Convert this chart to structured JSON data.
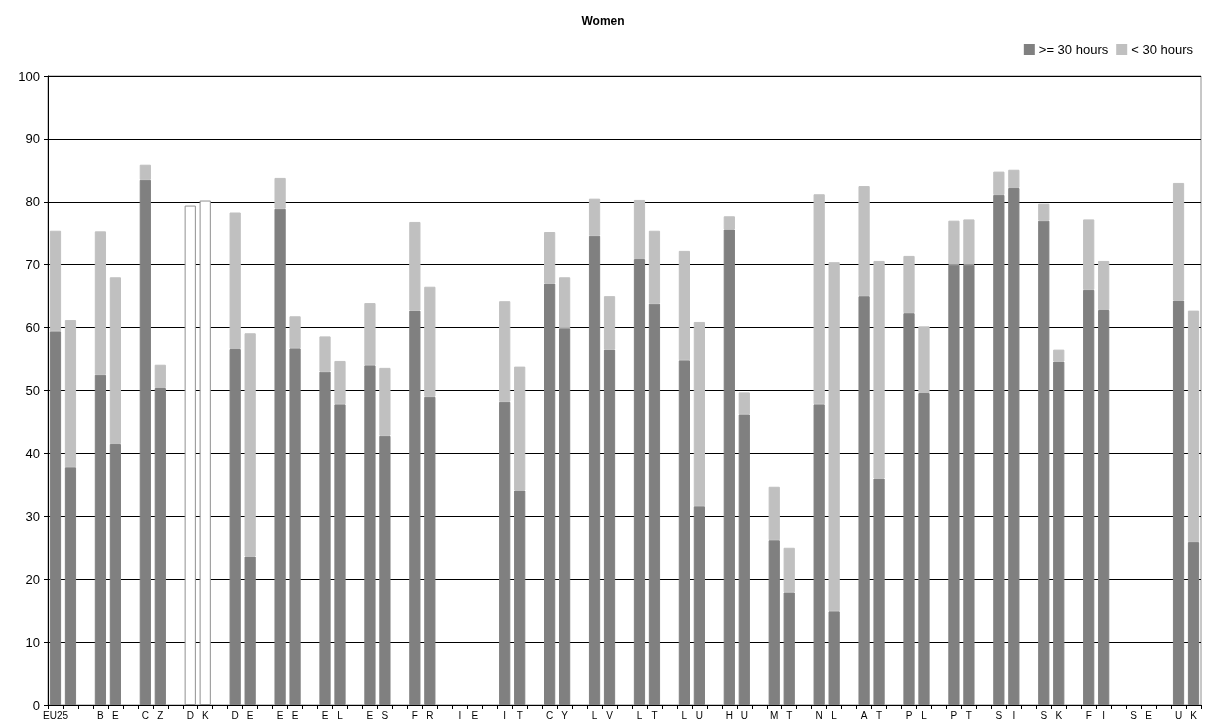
{
  "chart_data": {
    "type": "bar",
    "title": "Women",
    "stacked": true,
    "categories": [
      "EU25",
      null,
      null,
      "B",
      "E",
      null,
      "C",
      "Z",
      null,
      "D",
      "K",
      null,
      "D",
      "E",
      null,
      "E",
      "E",
      null,
      "E",
      "L",
      null,
      "E",
      "S",
      null,
      "F",
      "R",
      null,
      "I",
      "E",
      null,
      "I",
      "T",
      null,
      "C",
      "Y",
      null,
      "L",
      "V",
      null,
      "L",
      "T",
      null,
      "L",
      "U",
      null,
      "H",
      "U",
      null,
      "M",
      "T",
      null,
      "N",
      "L",
      null,
      "A",
      "T",
      null,
      "P",
      "L",
      null,
      "P",
      "T",
      null,
      "S",
      "I",
      null,
      "S",
      "K",
      null,
      "F",
      "I",
      null,
      "S",
      "E",
      null,
      "U",
      "K"
    ],
    "series": [
      {
        "name": ">= 30 hours",
        "color": "#808080",
        "values": [
          59.4,
          37.8,
          null,
          52.5,
          41.5,
          null,
          83.5,
          50.4,
          null,
          null,
          null,
          null,
          56.6,
          23.6,
          null,
          78.9,
          56.7,
          null,
          53.0,
          47.8,
          null,
          54.0,
          42.8,
          null,
          62.7,
          49.0,
          null,
          null,
          null,
          null,
          48.2,
          34.1,
          null,
          67.0,
          59.9,
          null,
          74.6,
          56.5,
          null,
          70.9,
          63.8,
          null,
          54.8,
          31.6,
          null,
          75.6,
          46.2,
          null,
          26.2,
          17.9,
          null,
          47.8,
          14.9,
          null,
          65.0,
          36.0,
          null,
          62.3,
          49.6,
          null,
          70.0,
          70.0,
          null,
          81.1,
          82.2,
          null,
          77.0,
          54.6,
          null,
          66.0,
          62.8,
          null,
          null,
          null,
          null,
          64.3,
          25.9
        ]
      },
      {
        "name": "< 30 hours",
        "color": "#c0c0c0",
        "values": [
          16.0,
          23.4,
          null,
          22.8,
          26.5,
          null,
          2.4,
          3.7,
          null,
          null,
          null,
          null,
          21.7,
          35.5,
          null,
          4.9,
          5.1,
          null,
          5.6,
          6.9,
          null,
          9.9,
          10.8,
          null,
          14.1,
          17.5,
          null,
          null,
          null,
          null,
          16.0,
          19.7,
          null,
          8.2,
          8.1,
          null,
          5.9,
          8.5,
          null,
          9.4,
          11.6,
          null,
          17.4,
          29.3,
          null,
          2.1,
          3.5,
          null,
          8.5,
          7.1,
          null,
          33.4,
          55.5,
          null,
          17.5,
          34.6,
          null,
          9.1,
          10.6,
          null,
          7.0,
          7.2,
          null,
          3.7,
          2.9,
          null,
          2.7,
          1.9,
          null,
          11.2,
          7.8,
          null,
          null,
          null,
          null,
          18.7,
          36.8
        ]
      },
      {
        "color": "#ffffff",
        "values": [
          null,
          null,
          null,
          null,
          null,
          null,
          null,
          null,
          null,
          79.4,
          80.2,
          null,
          null,
          null,
          null,
          null,
          null,
          null,
          null,
          null,
          null,
          null,
          null,
          null,
          null,
          null,
          null,
          null,
          null,
          null,
          null,
          null,
          null,
          null,
          null,
          null,
          null,
          null,
          null,
          null,
          null,
          null,
          null,
          null,
          null,
          null,
          null,
          null,
          null,
          null,
          null,
          null,
          null,
          null,
          null,
          null,
          null,
          null,
          null,
          null,
          null,
          null,
          null,
          null,
          null,
          null,
          null,
          null,
          null,
          null,
          null,
          null,
          null,
          null,
          null,
          null,
          null
        ]
      }
    ],
    "ylim": [
      0,
      100
    ],
    "yticks": [
      0,
      10,
      20,
      30,
      40,
      50,
      60,
      70,
      80,
      90,
      100
    ],
    "grid": "y",
    "legend": "top right"
  }
}
